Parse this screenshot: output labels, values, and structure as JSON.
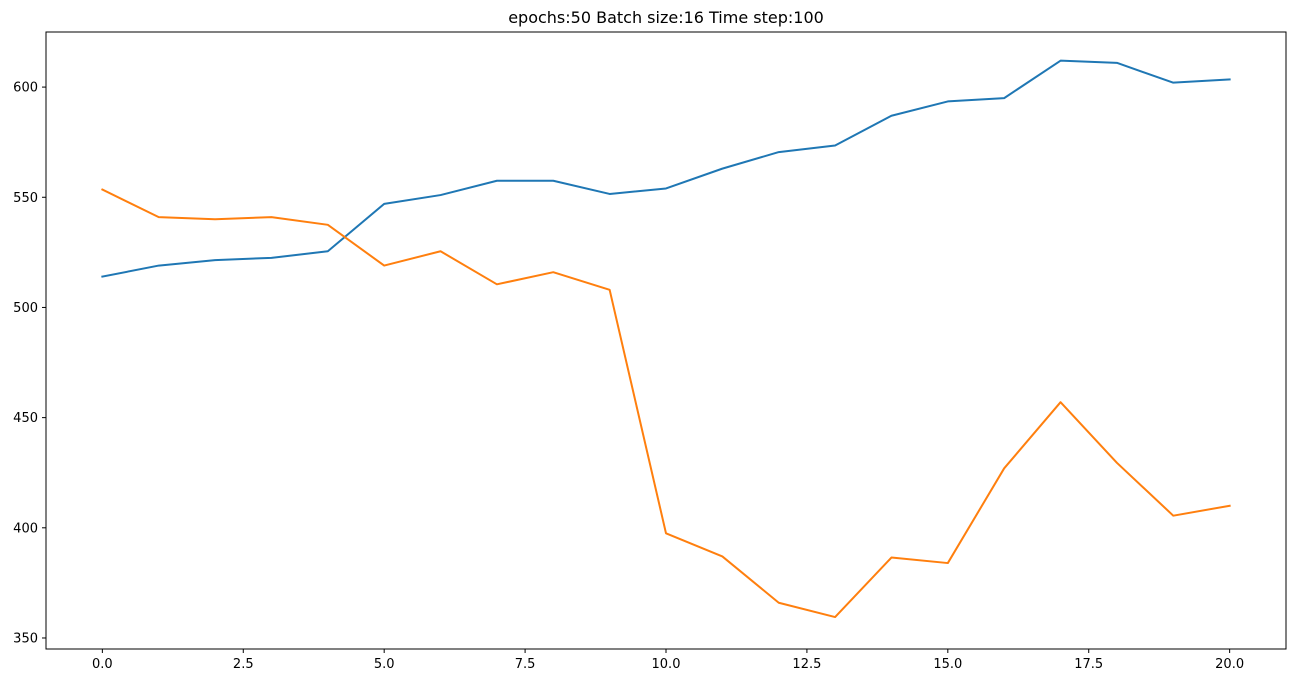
{
  "chart_data": {
    "type": "line",
    "title": "epochs:50   Batch size:16    Time step:100",
    "xlabel": "",
    "ylabel": "",
    "xlim": [
      -1,
      21
    ],
    "ylim": [
      345,
      625
    ],
    "xticks": [
      0.0,
      2.5,
      5.0,
      7.5,
      10.0,
      12.5,
      15.0,
      17.5,
      20.0
    ],
    "xtick_labels": [
      "0.0",
      "2.5",
      "5.0",
      "7.5",
      "10.0",
      "12.5",
      "15.0",
      "17.5",
      "20.0"
    ],
    "yticks": [
      350,
      400,
      450,
      500,
      550,
      600
    ],
    "ytick_labels": [
      "350",
      "400",
      "450",
      "500",
      "550",
      "600"
    ],
    "grid": false,
    "x": [
      0,
      1,
      2,
      3,
      4,
      5,
      6,
      7,
      8,
      9,
      10,
      11,
      12,
      13,
      14,
      15,
      16,
      17,
      18,
      19,
      20
    ],
    "series": [
      {
        "color": "#1f77b4",
        "values": [
          514,
          519,
          521.5,
          522.5,
          525.5,
          547,
          551,
          557.5,
          557.5,
          551.5,
          554,
          563,
          570.5,
          573.5,
          587,
          593.5,
          595,
          612,
          611,
          602,
          603.5
        ]
      },
      {
        "color": "#ff7f0e",
        "values": [
          553.5,
          541,
          540,
          541,
          537.5,
          519,
          525.5,
          510.5,
          516,
          508,
          397.5,
          387,
          366,
          359.5,
          386.5,
          384,
          427,
          457,
          429.5,
          405.5,
          410
        ]
      }
    ]
  }
}
